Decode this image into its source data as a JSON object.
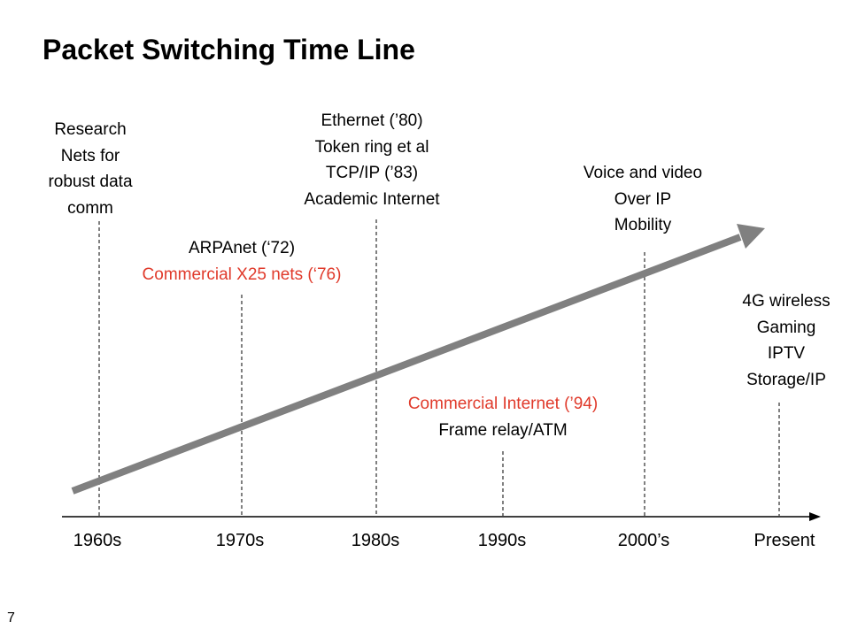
{
  "slide": {
    "title": "Packet Switching Time Line",
    "page_number": "7"
  },
  "colors": {
    "text": "#000000",
    "highlight": "#e03a2b",
    "arrow": "#808080"
  },
  "timeline": {
    "ticks": [
      "1960s",
      "1970s",
      "1980s",
      "1990s",
      "2000’s",
      "Present"
    ]
  },
  "annotations": {
    "research": [
      "Research",
      "Nets for",
      "robust data",
      "comm"
    ],
    "arpanet": [
      "ARPAnet (‘72)"
    ],
    "commercial_x25": [
      "Commercial X25 nets (‘76)"
    ],
    "ethernet": [
      "Ethernet (’80)",
      "Token ring et al",
      "TCP/IP (’83)",
      "Academic Internet"
    ],
    "commercial_internet": [
      "Commercial Internet (’94)"
    ],
    "frame_relay": [
      "Frame relay/ATM"
    ],
    "voice_video": [
      "Voice and video",
      "Over IP",
      "Mobility"
    ],
    "wireless": [
      "4G wireless",
      "Gaming",
      "IPTV",
      "Storage/IP"
    ]
  }
}
